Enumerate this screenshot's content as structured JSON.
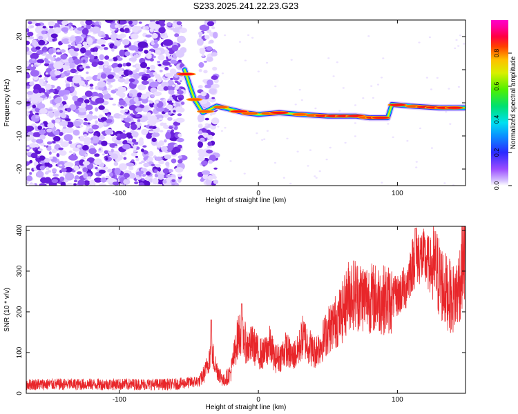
{
  "title": "S233.2025.241.22.23.G23",
  "colors": {
    "snr_line": "#e8262a",
    "noise_purple": "#7b35e6",
    "axis": "#000000"
  },
  "chart_data": [
    {
      "type": "heatmap",
      "name": "spectrogram",
      "title": "S233.2025.241.22.23.G23",
      "xlabel": "Height of straight line (km)",
      "ylabel": "Frequency (Hz)",
      "xlim": [
        -167,
        149
      ],
      "ylim": [
        -25,
        25
      ],
      "xticks": [
        -100,
        0,
        100
      ],
      "yticks": [
        -20,
        -10,
        0,
        10,
        20
      ],
      "noise_region_x": [
        -167,
        -54
      ],
      "noise_strip_x": [
        -42,
        -30
      ],
      "signal_track": [
        {
          "x": -53,
          "y": 10
        },
        {
          "x": -50,
          "y": 6
        },
        {
          "x": -46,
          "y": 1
        },
        {
          "x": -40,
          "y": -3
        },
        {
          "x": -30,
          "y": -1
        },
        {
          "x": -20,
          "y": -2
        },
        {
          "x": -10,
          "y": -3
        },
        {
          "x": 0,
          "y": -3.5
        },
        {
          "x": 15,
          "y": -3
        },
        {
          "x": 30,
          "y": -3.5
        },
        {
          "x": 50,
          "y": -4
        },
        {
          "x": 70,
          "y": -4
        },
        {
          "x": 80,
          "y": -4.5
        },
        {
          "x": 93,
          "y": -4.5
        },
        {
          "x": 96,
          "y": -0.5
        },
        {
          "x": 110,
          "y": -1
        },
        {
          "x": 130,
          "y": -1.5
        },
        {
          "x": 148,
          "y": -1.5
        }
      ],
      "colorbar": {
        "label": "Normalized spectral amplitude",
        "range": [
          0.0,
          1.0
        ],
        "ticks": [
          "0.0",
          "0.2",
          "0.4",
          "0.6",
          "0.8"
        ]
      }
    },
    {
      "type": "line",
      "name": "snr",
      "xlabel": "Height of straight line (km)",
      "ylabel": "SNR (10 * v/v)",
      "xlim": [
        -167,
        149
      ],
      "ylim": [
        0,
        410
      ],
      "xticks": [
        -100,
        0,
        100
      ],
      "yticks": [
        0,
        100,
        200,
        300,
        400
      ],
      "trend": {
        "x": [
          -167,
          -100,
          -60,
          -42,
          -38,
          -34,
          -30,
          -25,
          -20,
          -15,
          -13,
          -8,
          -4,
          0,
          4,
          8,
          12,
          16,
          20,
          24,
          28,
          32,
          36,
          40,
          45,
          50,
          55,
          60,
          66,
          72,
          80,
          90,
          96,
          100,
          106,
          110,
          114,
          118,
          122,
          128,
          134,
          140,
          143,
          146,
          147,
          149
        ],
        "y": [
          22,
          22,
          22,
          30,
          55,
          105,
          60,
          30,
          50,
          135,
          150,
          115,
          120,
          100,
          95,
          120,
          85,
          90,
          110,
          90,
          100,
          140,
          120,
          100,
          120,
          155,
          175,
          195,
          250,
          240,
          235,
          230,
          230,
          240,
          260,
          310,
          340,
          335,
          320,
          300,
          255,
          230,
          250,
          290,
          350,
          330
        ]
      },
      "peaks": [
        {
          "x": -34,
          "y": 180
        },
        {
          "x": -12,
          "y": 220
        },
        {
          "x": 113,
          "y": 405
        }
      ]
    }
  ]
}
